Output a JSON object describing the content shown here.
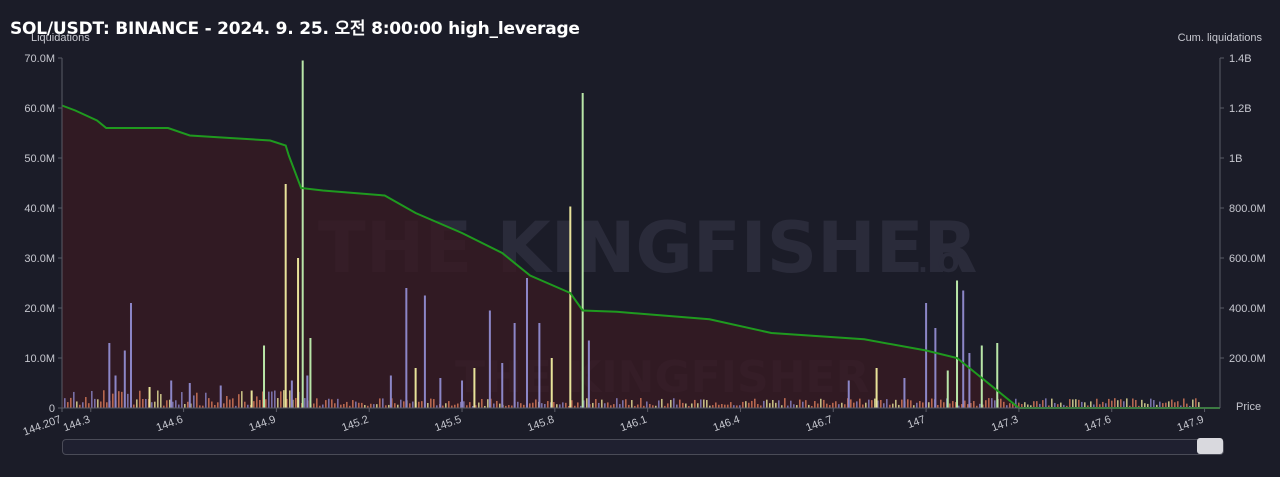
{
  "title": "SOL/USDT: BINANCE - 2024. 9. 25. 오전 8:00:00 high_leverage",
  "watermark": "THE KINGFISHER",
  "watermark_suffix": ".IO",
  "colors": {
    "background": "#1b1c28",
    "cum_line": "#1f9a1f",
    "cum_fill": "#3a1a22",
    "bar_green": "#b9e6a8",
    "bar_purple": "#8c86c7",
    "bar_yellow": "#e8e39a",
    "bar_orange": "#d97a5a"
  },
  "chart_data": {
    "type": "bar",
    "title": "SOL/USDT: BINANCE - 2024. 9. 25. 오전 8:00:00 high_leverage",
    "xlabel": "Price",
    "ylabel_left": "Liquidations",
    "ylabel_right": "Cum. liquidations",
    "xlim": [
      144.207,
      147.95
    ],
    "ylim_left": [
      0,
      70000000
    ],
    "ylim_right": [
      0,
      1400000000
    ],
    "x_ticks": [
      "144.207",
      "144.3",
      "144.6",
      "144.9",
      "145.2",
      "145.5",
      "145.8",
      "146.1",
      "146.4",
      "146.7",
      "147",
      "147.3",
      "147.6",
      "147.9"
    ],
    "y_ticks_left": [
      "0",
      "10.0M",
      "20.0M",
      "30.0M",
      "40.0M",
      "50.0M",
      "60.0M",
      "70.0M"
    ],
    "y_ticks_right": [
      "200.0M",
      "400.0M",
      "600.0M",
      "800.0M",
      "1B",
      "1.2B",
      "1.4B"
    ],
    "grid": false,
    "series": [
      {
        "name": "Liquidations",
        "bars": [
          {
            "x": 144.36,
            "y": 13000000,
            "color": "purple"
          },
          {
            "x": 144.38,
            "y": 6500000,
            "color": "purple"
          },
          {
            "x": 144.41,
            "y": 11500000,
            "color": "purple"
          },
          {
            "x": 144.43,
            "y": 21000000,
            "color": "purple"
          },
          {
            "x": 144.49,
            "y": 4200000,
            "color": "yellow"
          },
          {
            "x": 144.56,
            "y": 5500000,
            "color": "purple"
          },
          {
            "x": 144.62,
            "y": 5000000,
            "color": "purple"
          },
          {
            "x": 144.72,
            "y": 4500000,
            "color": "purple"
          },
          {
            "x": 144.82,
            "y": 3500000,
            "color": "yellow"
          },
          {
            "x": 144.86,
            "y": 12500000,
            "color": "green"
          },
          {
            "x": 144.93,
            "y": 44800000,
            "color": "yellow"
          },
          {
            "x": 144.95,
            "y": 5500000,
            "color": "purple"
          },
          {
            "x": 144.97,
            "y": 30000000,
            "color": "yellow"
          },
          {
            "x": 144.985,
            "y": 69500000,
            "color": "green"
          },
          {
            "x": 145.0,
            "y": 6500000,
            "color": "purple"
          },
          {
            "x": 145.01,
            "y": 14000000,
            "color": "green"
          },
          {
            "x": 145.27,
            "y": 6500000,
            "color": "purple"
          },
          {
            "x": 145.32,
            "y": 24000000,
            "color": "purple"
          },
          {
            "x": 145.35,
            "y": 8000000,
            "color": "yellow"
          },
          {
            "x": 145.38,
            "y": 22500000,
            "color": "purple"
          },
          {
            "x": 145.43,
            "y": 6000000,
            "color": "purple"
          },
          {
            "x": 145.5,
            "y": 5500000,
            "color": "purple"
          },
          {
            "x": 145.54,
            "y": 8000000,
            "color": "yellow"
          },
          {
            "x": 145.59,
            "y": 19500000,
            "color": "purple"
          },
          {
            "x": 145.63,
            "y": 9000000,
            "color": "purple"
          },
          {
            "x": 145.67,
            "y": 17000000,
            "color": "purple"
          },
          {
            "x": 145.71,
            "y": 26000000,
            "color": "purple"
          },
          {
            "x": 145.75,
            "y": 17000000,
            "color": "purple"
          },
          {
            "x": 145.79,
            "y": 10000000,
            "color": "yellow"
          },
          {
            "x": 145.85,
            "y": 40300000,
            "color": "yellow"
          },
          {
            "x": 145.89,
            "y": 63000000,
            "color": "green"
          },
          {
            "x": 145.91,
            "y": 13500000,
            "color": "purple"
          },
          {
            "x": 146.75,
            "y": 5500000,
            "color": "purple"
          },
          {
            "x": 146.84,
            "y": 8000000,
            "color": "yellow"
          },
          {
            "x": 146.93,
            "y": 6000000,
            "color": "purple"
          },
          {
            "x": 147.0,
            "y": 21000000,
            "color": "purple"
          },
          {
            "x": 147.03,
            "y": 16000000,
            "color": "purple"
          },
          {
            "x": 147.07,
            "y": 7500000,
            "color": "green"
          },
          {
            "x": 147.1,
            "y": 25500000,
            "color": "green"
          },
          {
            "x": 147.12,
            "y": 23500000,
            "color": "purple"
          },
          {
            "x": 147.14,
            "y": 11000000,
            "color": "purple"
          },
          {
            "x": 147.18,
            "y": 12500000,
            "color": "green"
          },
          {
            "x": 147.23,
            "y": 13000000,
            "color": "green"
          }
        ]
      },
      {
        "name": "Cum. liquidations",
        "points": [
          [
            144.207,
            1210000000
          ],
          [
            144.25,
            1190000000
          ],
          [
            144.32,
            1150000000
          ],
          [
            144.35,
            1120000000
          ],
          [
            144.4,
            1120000000
          ],
          [
            144.55,
            1120000000
          ],
          [
            144.62,
            1090000000
          ],
          [
            144.75,
            1080000000
          ],
          [
            144.88,
            1070000000
          ],
          [
            144.93,
            1050000000
          ],
          [
            144.94,
            1010000000
          ],
          [
            144.98,
            880000000
          ],
          [
            145.05,
            870000000
          ],
          [
            145.25,
            850000000
          ],
          [
            145.35,
            780000000
          ],
          [
            145.5,
            700000000
          ],
          [
            145.63,
            620000000
          ],
          [
            145.72,
            530000000
          ],
          [
            145.85,
            460000000
          ],
          [
            145.89,
            390000000
          ],
          [
            146.0,
            385000000
          ],
          [
            146.3,
            355000000
          ],
          [
            146.5,
            300000000
          ],
          [
            146.8,
            275000000
          ],
          [
            147.0,
            230000000
          ],
          [
            147.1,
            200000000
          ],
          [
            147.18,
            120000000
          ],
          [
            147.26,
            40000000
          ],
          [
            147.3,
            0
          ],
          [
            147.95,
            0
          ]
        ]
      }
    ]
  }
}
